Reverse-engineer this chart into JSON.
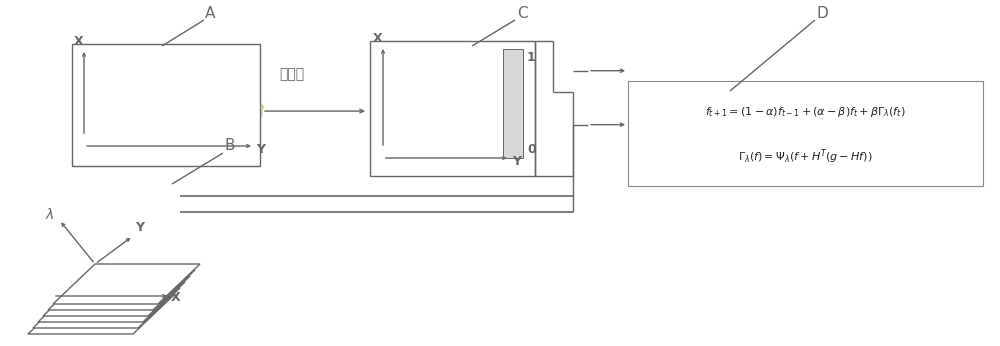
{
  "bg_color": "#ffffff",
  "lc": "#666666",
  "lw": 1.0,
  "label_A": "A",
  "label_B": "B",
  "label_C": "C",
  "label_D": "D",
  "label_gui": "归一化",
  "formula_line1": "$f_{t+1}=(1-\\alpha)f_{t-1}+(\\alpha-\\beta)f_t+\\beta\\Gamma_{\\lambda}(f_t)$",
  "formula_line2": "$\\Gamma_{\\lambda}(f)=\\Psi_{\\lambda}(f+H^T(g-Hf))$",
  "text_X": "X",
  "text_Y": "Y",
  "text_lambda": "$\\lambda$",
  "digit_1": "1",
  "digit_0": "0",
  "figw": 10.0,
  "figh": 3.46,
  "dpi": 100
}
